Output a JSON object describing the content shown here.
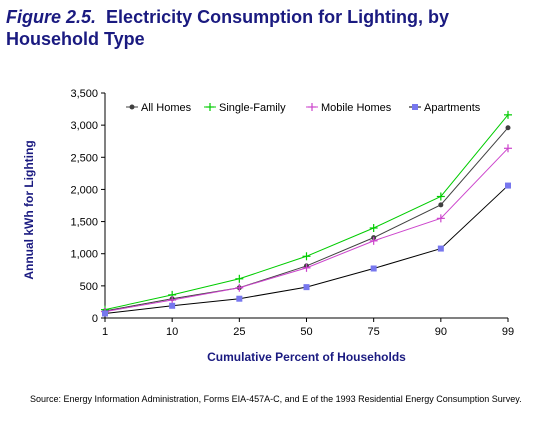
{
  "title": {
    "figure_label": "Figure 2.5.",
    "text": "Electricity Consumption for Lighting, by Household Type"
  },
  "source": "Source: Energy Information Administration, Forms EIA-457A-C, and E of the 1993 Residential Energy Consumption Survey.",
  "chart_data": {
    "type": "line",
    "title": "Figure 2.5. Electricity Consumption for Lighting, by Household Type",
    "xlabel": "Cumulative Percent of Households",
    "ylabel": "Annual kWh for Lighting",
    "categories": [
      "1",
      "10",
      "25",
      "50",
      "75",
      "90",
      "99"
    ],
    "ylim": [
      0,
      3500
    ],
    "yticks": [
      "0",
      "500",
      "1,000",
      "1,500",
      "2,000",
      "2,500",
      "3,000",
      "3,500"
    ],
    "ytick_values": [
      0,
      500,
      1000,
      1500,
      2000,
      2500,
      3000,
      3500
    ],
    "grid": false,
    "legend_position": "top",
    "series": [
      {
        "name": "All Homes",
        "values": [
          110,
          300,
          470,
          810,
          1250,
          1760,
          2960
        ],
        "color": "#404040",
        "marker": "dot"
      },
      {
        "name": "Single-Family",
        "values": [
          130,
          360,
          610,
          960,
          1400,
          1890,
          3160
        ],
        "color": "#00cc00",
        "marker": "plus"
      },
      {
        "name": "Mobile Homes",
        "values": [
          100,
          280,
          470,
          780,
          1200,
          1550,
          2640
        ],
        "color": "#cc44cc",
        "marker": "plus"
      },
      {
        "name": "Apartments",
        "values": [
          70,
          190,
          300,
          480,
          770,
          1080,
          2060
        ],
        "color": "#000000",
        "marker": "square",
        "marker_color": "#7777ee"
      }
    ]
  }
}
